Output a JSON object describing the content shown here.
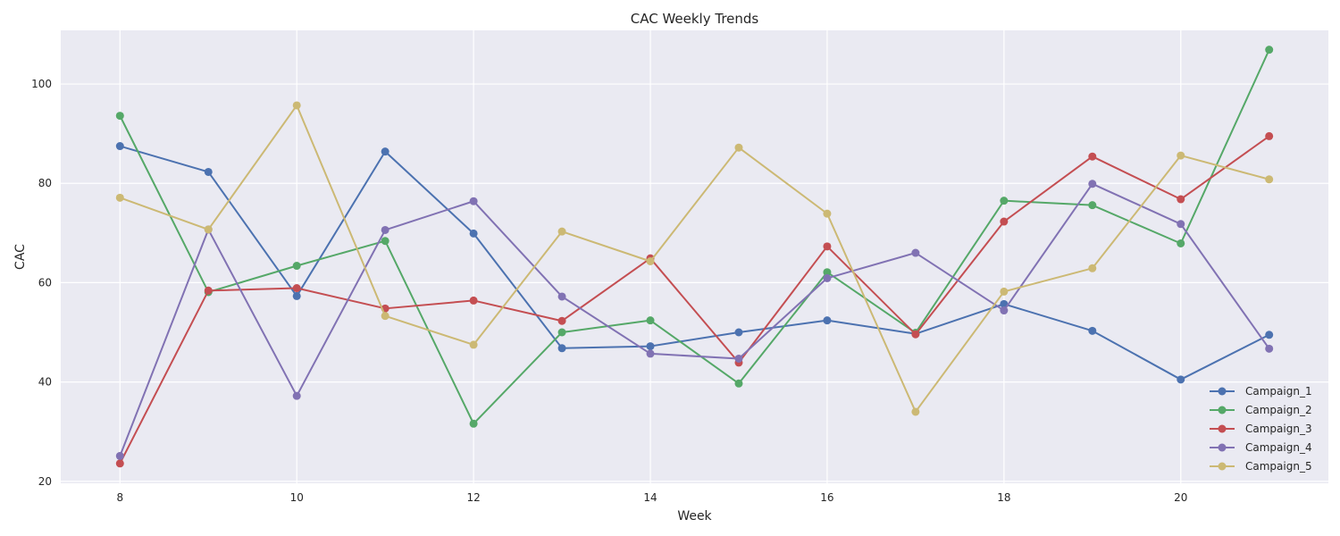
{
  "chart_data": {
    "type": "line",
    "title": "CAC Weekly Trends",
    "xlabel": "Week",
    "ylabel": "CAC",
    "x": [
      8,
      9,
      10,
      11,
      12,
      13,
      14,
      15,
      16,
      17,
      18,
      19,
      20,
      21
    ],
    "xlim": [
      7.33,
      21.67
    ],
    "ylim": [
      19.6,
      110.8
    ],
    "xticks": [
      8,
      10,
      12,
      14,
      16,
      18,
      20
    ],
    "yticks": [
      20,
      40,
      60,
      80,
      100
    ],
    "grid": true,
    "legend_position": "bottom-right",
    "background_color": "#eaeaf2",
    "series": [
      {
        "name": "Campaign_1",
        "color": "#4c72b0",
        "values": [
          87.5,
          82.3,
          57.3,
          86.4,
          69.9,
          46.8,
          47.2,
          50.0,
          52.4,
          49.7,
          55.7,
          50.3,
          40.5,
          49.5
        ]
      },
      {
        "name": "Campaign_2",
        "color": "#55a868",
        "values": [
          93.6,
          58.1,
          63.4,
          68.4,
          31.6,
          50.0,
          52.4,
          39.7,
          62.1,
          49.9,
          76.5,
          75.6,
          67.9,
          106.9
        ]
      },
      {
        "name": "Campaign_3",
        "color": "#c44e52",
        "values": [
          23.6,
          58.4,
          58.9,
          54.8,
          56.4,
          52.3,
          64.9,
          43.9,
          67.3,
          49.6,
          72.3,
          85.4,
          76.8,
          89.5
        ]
      },
      {
        "name": "Campaign_4",
        "color": "#8172b3",
        "values": [
          25.1,
          70.7,
          37.2,
          70.6,
          76.4,
          57.2,
          45.7,
          44.7,
          60.9,
          66.0,
          54.4,
          79.9,
          71.8,
          46.7
        ]
      },
      {
        "name": "Campaign_5",
        "color": "#ccb974",
        "values": [
          77.1,
          70.7,
          95.7,
          53.3,
          47.5,
          70.3,
          64.3,
          87.2,
          73.9,
          34.0,
          58.2,
          62.9,
          85.6,
          80.8
        ]
      }
    ]
  }
}
